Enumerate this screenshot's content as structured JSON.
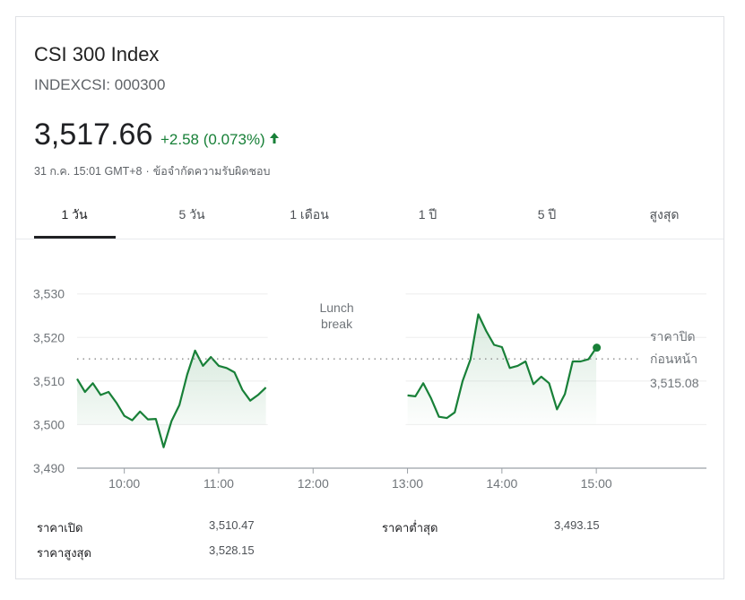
{
  "header": {
    "title": "CSI 300 Index",
    "ticker": "INDEXCSI: 000300",
    "price": "3,517.66",
    "change": "+2.58 (0.073%)",
    "timestamp": "31 ก.ค. 15:01 GMT+8",
    "separator": "·",
    "disclaimer": "ข้อจำกัดความรับผิดชอบ",
    "up_color": "#188038",
    "arrow_icon": "arrow-up-icon"
  },
  "tabs": [
    {
      "label": "1 วัน",
      "active": true
    },
    {
      "label": "5 วัน",
      "active": false
    },
    {
      "label": "1 เดือน",
      "active": false
    },
    {
      "label": "1 ปี",
      "active": false
    },
    {
      "label": "5 ปี",
      "active": false
    },
    {
      "label": "สูงสุด",
      "active": false
    }
  ],
  "chart_data": {
    "type": "line",
    "xlabel": "",
    "ylabel": "",
    "x_ticks": [
      "10:00",
      "11:00",
      "12:00",
      "13:00",
      "14:00",
      "15:00"
    ],
    "y_ticks": [
      "3,490",
      "3,500",
      "3,510",
      "3,520",
      "3,530"
    ],
    "xlim": [
      "09:30",
      "16:10"
    ],
    "ylim": [
      3490,
      3532
    ],
    "grid": true,
    "line_color": "#188038",
    "lunch_break_label": [
      "Lunch",
      "break"
    ],
    "lunch_break": [
      "11:30",
      "13:00"
    ],
    "previous_close": 3515.08,
    "previous_close_label": [
      "ราคาปิด",
      "ก่อนหน้า"
    ],
    "previous_close_value": "3,515.08",
    "series": [
      {
        "session": "morning",
        "points": [
          [
            "09:30",
            3510.5
          ],
          [
            "09:35",
            3507.5
          ],
          [
            "09:40",
            3509.5
          ],
          [
            "09:45",
            3506.8
          ],
          [
            "09:50",
            3507.5
          ],
          [
            "09:55",
            3505.0
          ],
          [
            "10:00",
            3502.0
          ],
          [
            "10:05",
            3501.0
          ],
          [
            "10:10",
            3503.0
          ],
          [
            "10:15",
            3501.2
          ],
          [
            "10:20",
            3501.3
          ],
          [
            "10:25",
            3494.8
          ],
          [
            "10:30",
            3500.8
          ],
          [
            "10:35",
            3504.5
          ],
          [
            "10:40",
            3511.5
          ],
          [
            "10:45",
            3517.0
          ],
          [
            "10:50",
            3513.5
          ],
          [
            "10:55",
            3515.5
          ],
          [
            "11:00",
            3513.5
          ],
          [
            "11:05",
            3513.0
          ],
          [
            "11:10",
            3512.0
          ],
          [
            "11:15",
            3508.0
          ],
          [
            "11:20",
            3505.5
          ],
          [
            "11:25",
            3506.8
          ],
          [
            "11:30",
            3508.5
          ]
        ]
      },
      {
        "session": "afternoon",
        "points": [
          [
            "13:00",
            3506.7
          ],
          [
            "13:05",
            3506.5
          ],
          [
            "13:10",
            3509.5
          ],
          [
            "13:15",
            3506.0
          ],
          [
            "13:20",
            3501.8
          ],
          [
            "13:25",
            3501.5
          ],
          [
            "13:30",
            3502.8
          ],
          [
            "13:35",
            3510.0
          ],
          [
            "13:40",
            3515.0
          ],
          [
            "13:45",
            3525.3
          ],
          [
            "13:50",
            3521.5
          ],
          [
            "13:55",
            3518.3
          ],
          [
            "14:00",
            3517.8
          ],
          [
            "14:05",
            3513.0
          ],
          [
            "14:10",
            3513.5
          ],
          [
            "14:15",
            3514.5
          ],
          [
            "14:20",
            3509.3
          ],
          [
            "14:25",
            3511.0
          ],
          [
            "14:30",
            3509.5
          ],
          [
            "14:35",
            3503.5
          ],
          [
            "14:40",
            3507.0
          ],
          [
            "14:45",
            3514.5
          ],
          [
            "14:50",
            3514.5
          ],
          [
            "14:55",
            3515.0
          ],
          [
            "15:00",
            3517.66
          ]
        ]
      }
    ]
  },
  "stats": {
    "open_label": "ราคาเปิด",
    "open_value": "3,510.47",
    "high_label": "ราคาสูงสุด",
    "high_value": "3,528.15",
    "low_label": "ราคาต่ำสุด",
    "low_value": "3,493.15"
  }
}
